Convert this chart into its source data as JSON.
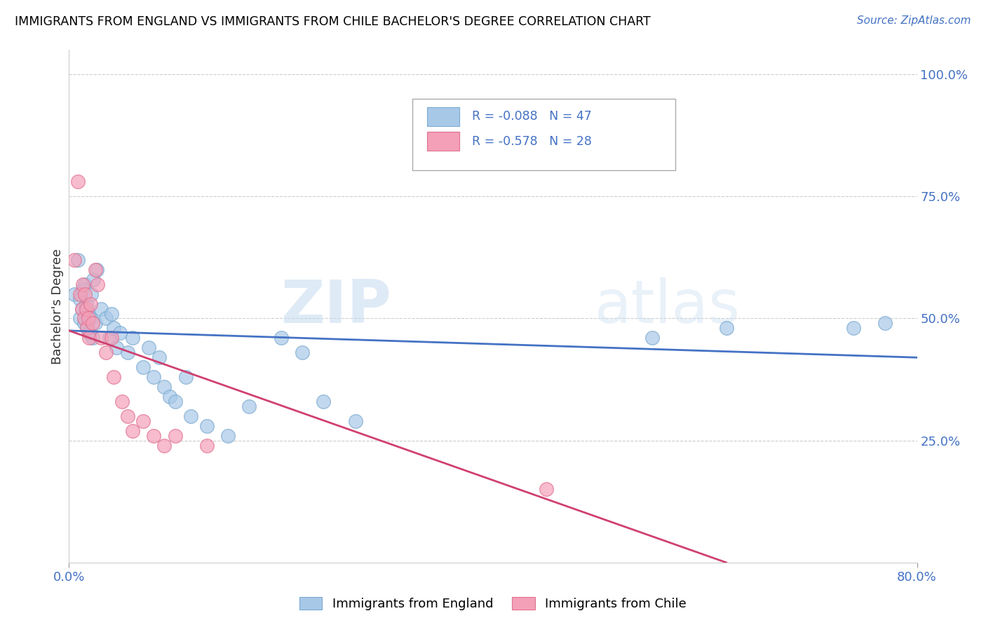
{
  "title": "IMMIGRANTS FROM ENGLAND VS IMMIGRANTS FROM CHILE BACHELOR'S DEGREE CORRELATION CHART",
  "source": "Source: ZipAtlas.com",
  "ylabel": "Bachelor's Degree",
  "xlim": [
    0.0,
    0.8
  ],
  "ylim": [
    0.0,
    1.05
  ],
  "england_R": -0.088,
  "england_N": 47,
  "chile_R": -0.578,
  "chile_N": 28,
  "england_color": "#a8c8e8",
  "chile_color": "#f4a0b8",
  "england_edge_color": "#7aaad0",
  "chile_edge_color": "#e07090",
  "england_line_color": "#4472c4",
  "chile_line_color": "#d04070",
  "england_scatter": [
    [
      0.005,
      0.55
    ],
    [
      0.008,
      0.62
    ],
    [
      0.01,
      0.5
    ],
    [
      0.01,
      0.54
    ],
    [
      0.012,
      0.52
    ],
    [
      0.013,
      0.56
    ],
    [
      0.014,
      0.49
    ],
    [
      0.015,
      0.57
    ],
    [
      0.016,
      0.53
    ],
    [
      0.017,
      0.48
    ],
    [
      0.018,
      0.51
    ],
    [
      0.019,
      0.47
    ],
    [
      0.02,
      0.5
    ],
    [
      0.021,
      0.55
    ],
    [
      0.022,
      0.46
    ],
    [
      0.023,
      0.58
    ],
    [
      0.025,
      0.49
    ],
    [
      0.026,
      0.6
    ],
    [
      0.03,
      0.52
    ],
    [
      0.035,
      0.5
    ],
    [
      0.038,
      0.46
    ],
    [
      0.04,
      0.51
    ],
    [
      0.042,
      0.48
    ],
    [
      0.045,
      0.44
    ],
    [
      0.048,
      0.47
    ],
    [
      0.055,
      0.43
    ],
    [
      0.06,
      0.46
    ],
    [
      0.07,
      0.4
    ],
    [
      0.075,
      0.44
    ],
    [
      0.08,
      0.38
    ],
    [
      0.085,
      0.42
    ],
    [
      0.09,
      0.36
    ],
    [
      0.095,
      0.34
    ],
    [
      0.1,
      0.33
    ],
    [
      0.11,
      0.38
    ],
    [
      0.115,
      0.3
    ],
    [
      0.13,
      0.28
    ],
    [
      0.15,
      0.26
    ],
    [
      0.17,
      0.32
    ],
    [
      0.2,
      0.46
    ],
    [
      0.22,
      0.43
    ],
    [
      0.24,
      0.33
    ],
    [
      0.27,
      0.29
    ],
    [
      0.55,
      0.46
    ],
    [
      0.62,
      0.48
    ],
    [
      0.74,
      0.48
    ],
    [
      0.77,
      0.49
    ]
  ],
  "chile_scatter": [
    [
      0.005,
      0.62
    ],
    [
      0.008,
      0.78
    ],
    [
      0.01,
      0.55
    ],
    [
      0.012,
      0.52
    ],
    [
      0.013,
      0.57
    ],
    [
      0.014,
      0.5
    ],
    [
      0.015,
      0.55
    ],
    [
      0.016,
      0.52
    ],
    [
      0.017,
      0.48
    ],
    [
      0.018,
      0.5
    ],
    [
      0.019,
      0.46
    ],
    [
      0.02,
      0.53
    ],
    [
      0.022,
      0.49
    ],
    [
      0.025,
      0.6
    ],
    [
      0.027,
      0.57
    ],
    [
      0.03,
      0.46
    ],
    [
      0.035,
      0.43
    ],
    [
      0.04,
      0.46
    ],
    [
      0.042,
      0.38
    ],
    [
      0.05,
      0.33
    ],
    [
      0.055,
      0.3
    ],
    [
      0.06,
      0.27
    ],
    [
      0.07,
      0.29
    ],
    [
      0.08,
      0.26
    ],
    [
      0.09,
      0.24
    ],
    [
      0.1,
      0.26
    ],
    [
      0.13,
      0.24
    ],
    [
      0.45,
      0.15
    ]
  ],
  "watermark_zip": "ZIP",
  "watermark_atlas": "atlas",
  "england_line_x": [
    0.0,
    0.8
  ],
  "england_line_y": [
    0.475,
    0.42
  ],
  "chile_line_x": [
    0.0,
    0.62
  ],
  "chile_line_y": [
    0.475,
    0.0
  ]
}
